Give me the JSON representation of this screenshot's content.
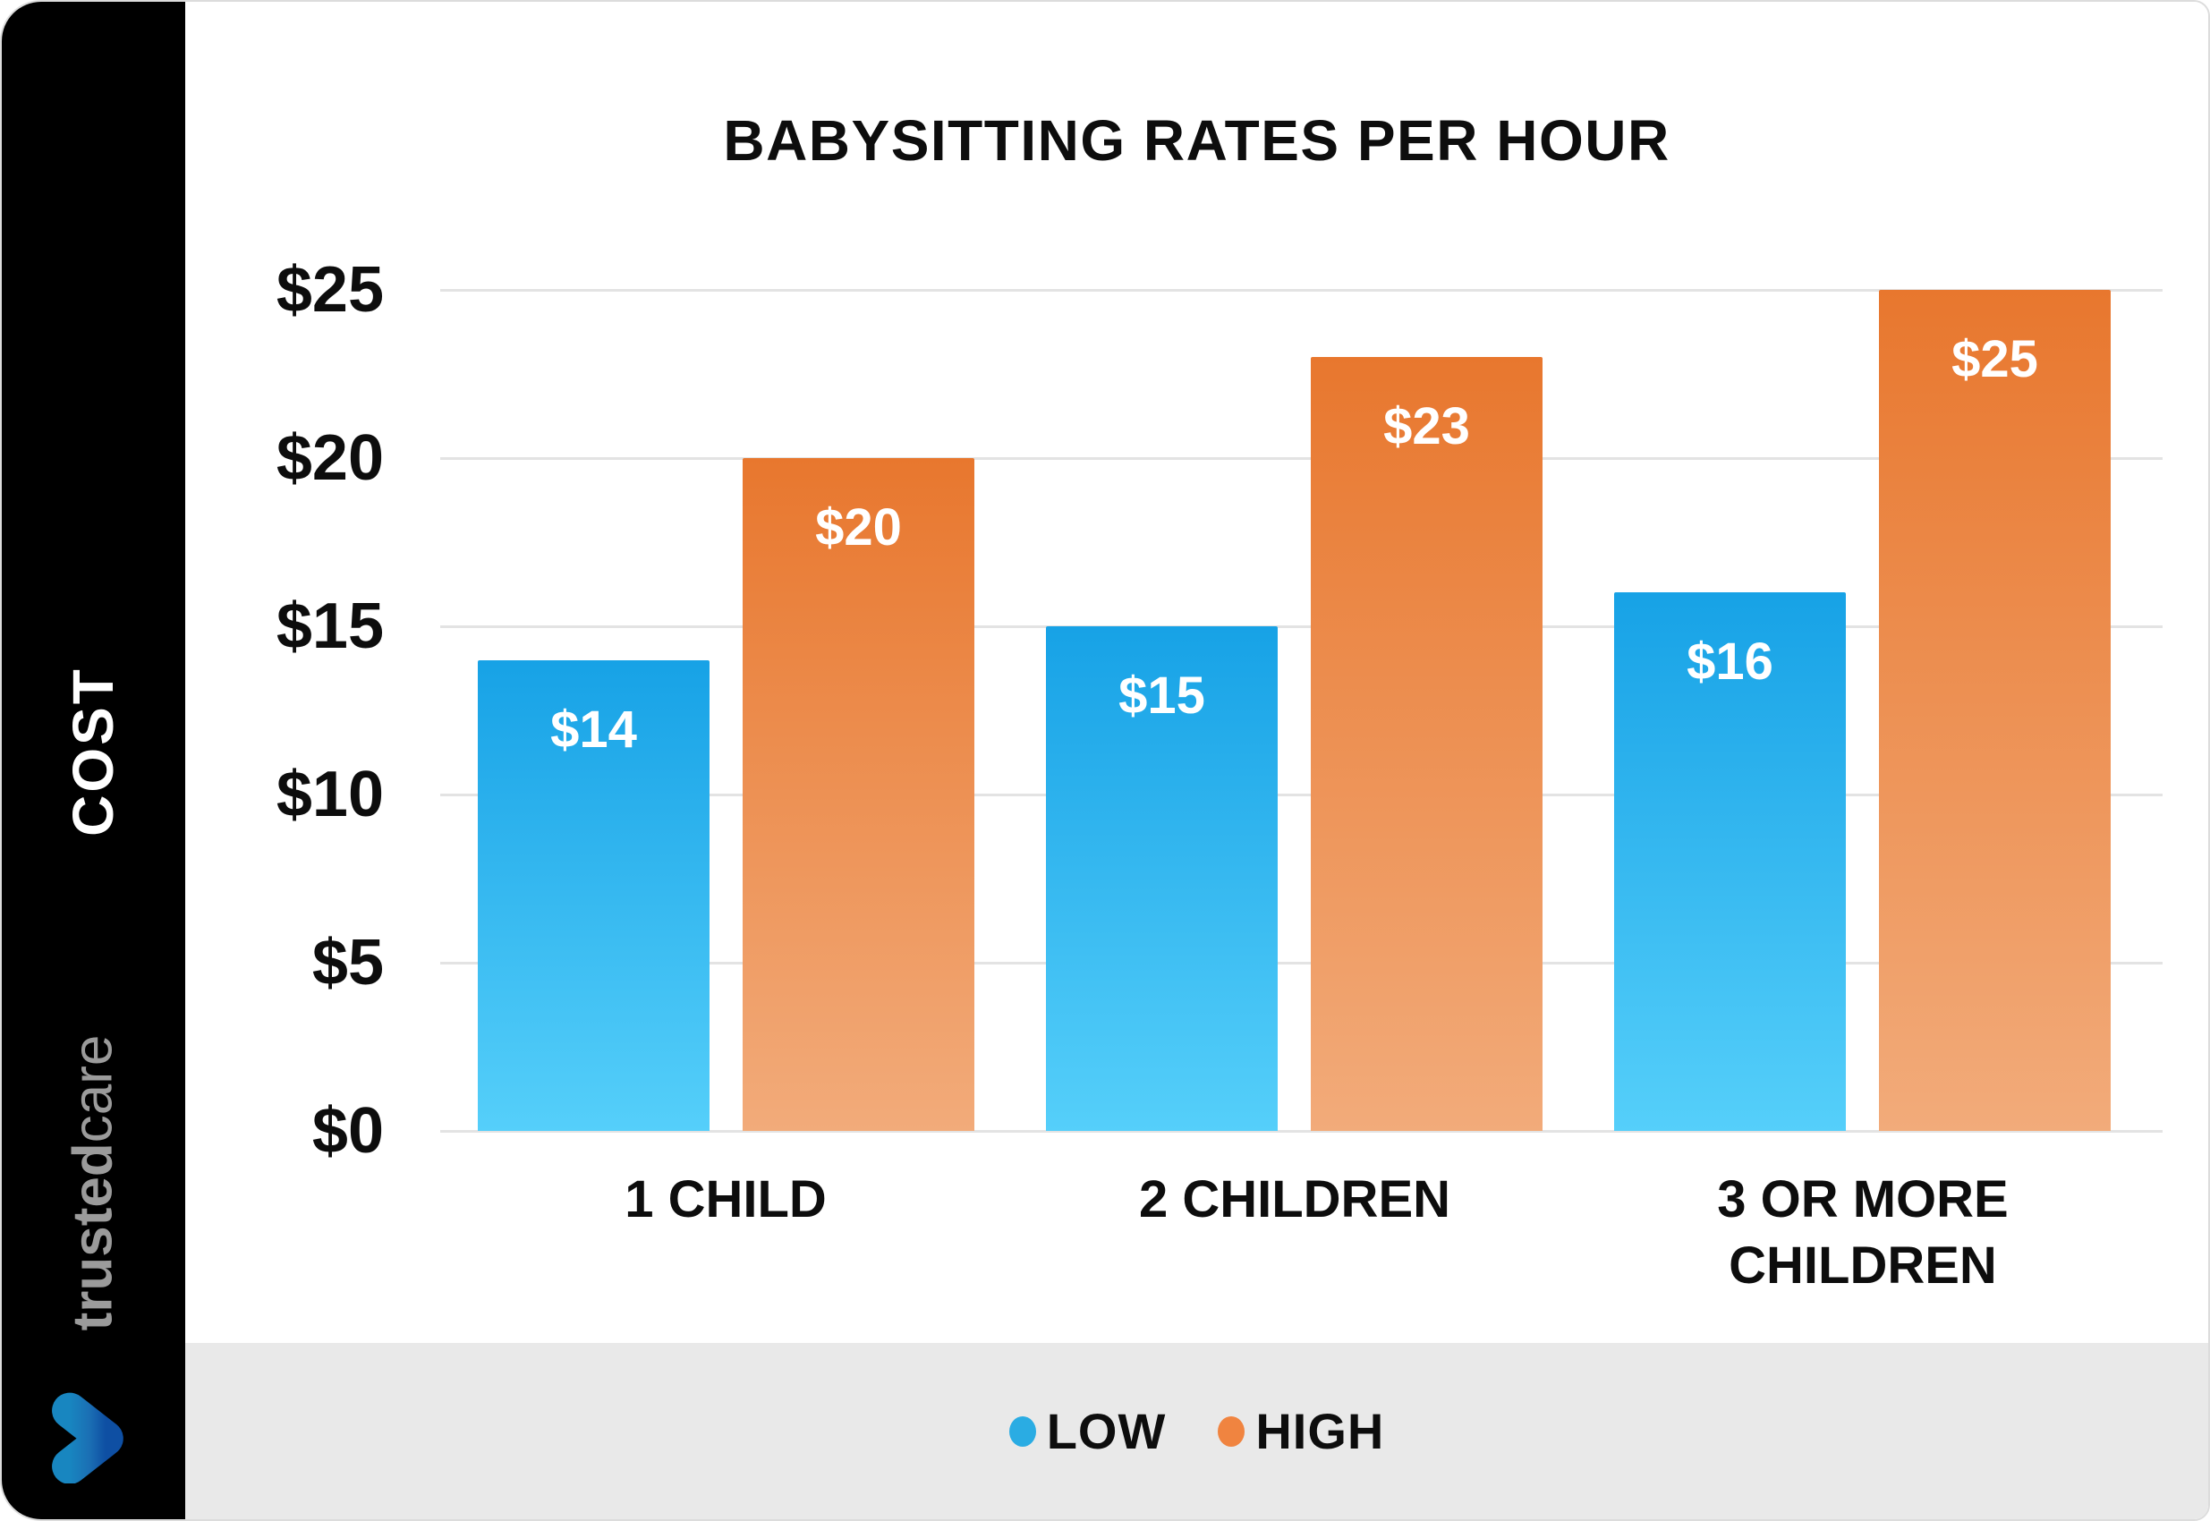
{
  "sidebar": {
    "brand_bold": "trusted",
    "brand_light": "care"
  },
  "chart_data": {
    "type": "bar",
    "title": "BABYSITTING RATES PER HOUR",
    "categories": [
      "1 CHILD",
      "2 CHILDREN",
      "3 OR MORE CHILDREN"
    ],
    "series": [
      {
        "name": "LOW",
        "values": [
          14,
          15,
          16
        ],
        "labels": [
          "$14",
          "$15",
          "$16"
        ],
        "color_top": "#17A2E6",
        "color_bottom": "#55CFFA",
        "legend_dot_color": "#2AACE3"
      },
      {
        "name": "HIGH",
        "values": [
          20,
          23,
          25
        ],
        "labels": [
          "$20",
          "$23",
          "$25"
        ],
        "color_top": "#E8772E",
        "color_bottom": "#F2AB7A",
        "legend_dot_color": "#F08440"
      }
    ],
    "y_axis": {
      "title": "COST",
      "ticks": [
        "$0",
        "$5",
        "$10",
        "$15",
        "$20",
        "$25"
      ],
      "min": 0,
      "max": 25,
      "step": 5
    },
    "legend": {
      "position": "bottom"
    },
    "grid": "horizontal gridlines at $5 intervals"
  },
  "colors": {
    "sidebar_bg": "#000000",
    "legend_strip_bg": "#E9E9E9",
    "gridline": "#E3E3E3",
    "title_text": "#0D0D0D",
    "bar_value_text": "#FFFFFF",
    "brand_text": "#9B9B9B",
    "logo_teal": "#1580B5",
    "logo_navy": "#1254A8"
  }
}
